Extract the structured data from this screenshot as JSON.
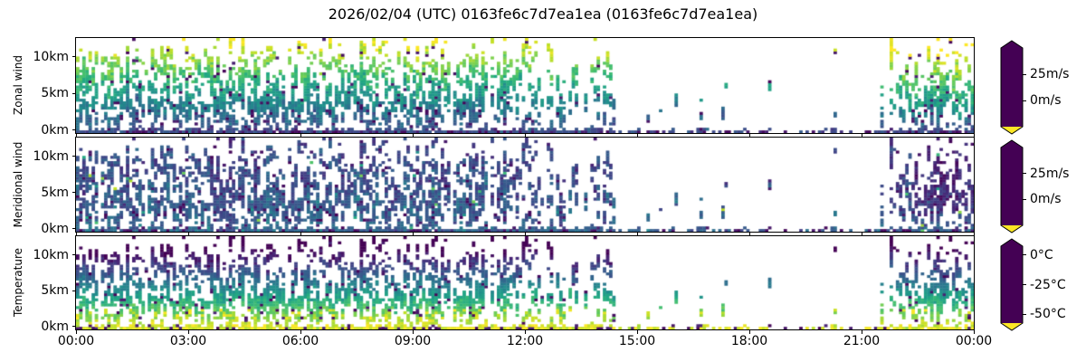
{
  "title": "2026/02/04 (UTC) 0163fe6c7d7ea1ea (0163fe6c7d7ea1ea)",
  "colors": {
    "background": "#ffffff",
    "axis": "#000000",
    "text": "#000000"
  },
  "chart_data": {
    "type": "heatmap",
    "title": "2026/02/04 (UTC) 0163fe6c7d7ea1ea (0163fe6c7d7ea1ea)",
    "x_axis": {
      "ticks": [
        "00:00",
        "03:00",
        "06:00",
        "09:00",
        "12:00",
        "15:00",
        "18:00",
        "21:00",
        "00:00"
      ],
      "tick_hours": [
        0,
        3,
        6,
        9,
        12,
        15,
        18,
        21,
        24
      ],
      "range_hours": [
        0,
        24
      ]
    },
    "y_axis": {
      "ticks": [
        "0km",
        "5km",
        "10km"
      ],
      "tick_values_km": [
        0,
        5,
        10
      ],
      "range_km": [
        -0.42,
        12.6
      ]
    },
    "colormap": "viridis",
    "colormap_stops": [
      [
        0.0,
        "#440154"
      ],
      [
        0.1,
        "#482475"
      ],
      [
        0.2,
        "#414487"
      ],
      [
        0.3,
        "#355f8d"
      ],
      [
        0.4,
        "#2a788e"
      ],
      [
        0.5,
        "#21918c"
      ],
      [
        0.6,
        "#22a884"
      ],
      [
        0.7,
        "#44bf70"
      ],
      [
        0.8,
        "#7ad151"
      ],
      [
        0.9,
        "#bddf26"
      ],
      [
        1.0,
        "#fde725"
      ]
    ],
    "panels": [
      {
        "id": "zonal-wind",
        "ylabel": "Zonal wind",
        "colorbar_ticks": [
          "25m/s",
          "0m/s"
        ],
        "colorbar_tick_values": [
          25,
          0
        ],
        "vmin": -25,
        "vmax": 50,
        "units": "m/s",
        "profile": {
          "v0": -8,
          "slope_per_km": 4.6,
          "noise": 4.5,
          "col_noise": 2.5,
          "late_boost": 8
        },
        "description": "Eastward wind increasing with height from about -8 m/s near the surface (dark blue) to 35-45 m/s near 11 km (green-yellow); brightest yellow aloft after 21:30 UTC."
      },
      {
        "id": "meridional-wind",
        "ylabel": "Meridional wind",
        "colorbar_ticks": [
          "25m/s",
          "0m/s"
        ],
        "colorbar_tick_values": [
          25,
          0
        ],
        "vmin": -25,
        "vmax": 50,
        "units": "m/s",
        "profile": {
          "v0": -2,
          "slope_per_km": -0.7,
          "noise": 5,
          "col_noise": 3,
          "late_boost": -8
        },
        "description": "Northward wind mostly between -20 and +5 m/s (slate blue to dark purple), turning more purple (more negative) after 21:00 UTC; occasional bright green/yellow outlier pixels."
      },
      {
        "id": "temperature",
        "ylabel": "Temperature",
        "colorbar_ticks": [
          "0°C",
          "-25°C",
          "-50°C"
        ],
        "colorbar_tick_values": [
          0,
          -25,
          -50
        ],
        "vmin": -57.5,
        "vmax": 7.5,
        "units": "°C",
        "profile": {
          "v0": 4,
          "slope_per_km": -5.8,
          "noise": 3,
          "col_noise": 2,
          "late_boost": 0
        },
        "description": "Temperature decreasing with altitude from about +5 C near the surface (yellow-green speckles) to about -55 C near 11 km (dark purple); yellow outliers in lowest 2 km."
      }
    ],
    "availability_profile": [
      [
        0,
        0.82,
        11.8
      ],
      [
        3,
        0.82,
        11.8
      ],
      [
        6,
        0.8,
        11.8
      ],
      [
        9,
        0.78,
        11.8
      ],
      [
        11.5,
        0.7,
        11.5
      ],
      [
        12.5,
        0.52,
        11.2
      ],
      [
        14,
        0.48,
        11.2
      ],
      [
        14.8,
        0.22,
        6.5
      ],
      [
        15.8,
        0.16,
        5
      ],
      [
        16.8,
        0.22,
        5.5
      ],
      [
        17.4,
        0.28,
        9
      ],
      [
        18.2,
        0.1,
        8
      ],
      [
        19.3,
        0.06,
        6
      ],
      [
        20.3,
        0.1,
        11
      ],
      [
        20.9,
        0.18,
        11.5
      ],
      [
        21.4,
        0.3,
        11.5
      ],
      [
        22,
        0.75,
        11.8
      ],
      [
        24,
        0.8,
        11.8
      ]
    ],
    "grid": {
      "cols": 288,
      "rows": 36,
      "seed": 42,
      "outlier_prob": 0.055
    }
  }
}
